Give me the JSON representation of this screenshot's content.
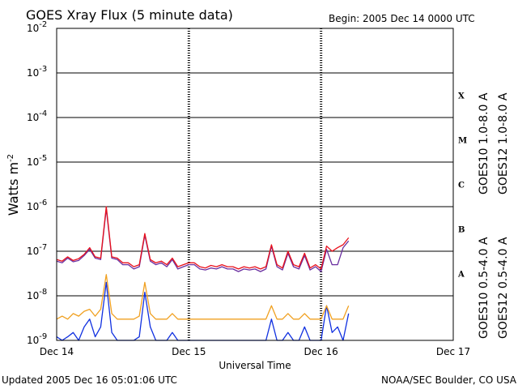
{
  "header": {
    "title": "GOES Xray Flux (5 minute data)",
    "begin": "Begin:  2005 Dec 14 0000 UTC"
  },
  "footer": {
    "updated": "Updated 2005 Dec 16 05:01:06 UTC",
    "credit": "NOAA/SEC Boulder, CO USA"
  },
  "chart_data": {
    "type": "line",
    "title": "GOES Xray Flux (5 minute data)",
    "xlabel": "Universal Time",
    "ylabel_base": "Watts m",
    "ylabel_exp": "-2",
    "yscale": "log",
    "ylim": [
      1e-09,
      0.01
    ],
    "xlim": [
      0,
      72
    ],
    "x_unit": "hours since 2005 Dec 14 0000 UTC",
    "x_ticks": [
      {
        "x": 0,
        "label": "Dec 14"
      },
      {
        "x": 24,
        "label": "Dec 15"
      },
      {
        "x": 48,
        "label": "Dec 16"
      },
      {
        "x": 72,
        "label": "Dec 17"
      }
    ],
    "y_ticks": [
      {
        "exp": "-9"
      },
      {
        "exp": "-8"
      },
      {
        "exp": "-7"
      },
      {
        "exp": "-6"
      },
      {
        "exp": "-5"
      },
      {
        "exp": "-4"
      },
      {
        "exp": "-3"
      },
      {
        "exp": "-2"
      }
    ],
    "y_tick_base": "10",
    "flare_classes": [
      {
        "label": "A",
        "level": 1e-08
      },
      {
        "label": "B",
        "level": 1e-07
      },
      {
        "label": "C",
        "level": 1e-06
      },
      {
        "label": "M",
        "level": 1e-05
      },
      {
        "label": "X",
        "level": 0.0001
      }
    ],
    "grid": true,
    "series": [
      {
        "name": "GOES10 1.0-8.0 A",
        "color": "#6a2fa0",
        "x": [
          0,
          1,
          2,
          3,
          4,
          5,
          6,
          7,
          8,
          9,
          10,
          11,
          12,
          13,
          14,
          15,
          16,
          17,
          18,
          19,
          20,
          21,
          22,
          23,
          24,
          25,
          26,
          27,
          28,
          29,
          30,
          31,
          32,
          33,
          34,
          35,
          36,
          37,
          38,
          39,
          40,
          41,
          42,
          43,
          44,
          45,
          46,
          47,
          48,
          49,
          50,
          51,
          52,
          53
        ],
        "y": [
          6e-08,
          5.5e-08,
          7e-08,
          5.8e-08,
          6.2e-08,
          8e-08,
          1.1e-07,
          7e-08,
          6.5e-08,
          9e-07,
          7e-08,
          6.5e-08,
          5e-08,
          5e-08,
          4e-08,
          4.5e-08,
          2.3e-07,
          6e-08,
          5e-08,
          5.5e-08,
          4.5e-08,
          6.5e-08,
          4e-08,
          4.5e-08,
          5e-08,
          5e-08,
          4e-08,
          3.8e-08,
          4.2e-08,
          4e-08,
          4.5e-08,
          4e-08,
          4e-08,
          3.5e-08,
          4e-08,
          3.8e-08,
          4e-08,
          3.5e-08,
          4e-08,
          1.3e-07,
          4.5e-08,
          3.8e-08,
          9e-08,
          4.5e-08,
          4e-08,
          8e-08,
          3.8e-08,
          4.5e-08,
          3.5e-08,
          1.1e-07,
          5e-08,
          5e-08,
          1.2e-07,
          1.7e-07
        ]
      },
      {
        "name": "GOES12 1.0-8.0 A",
        "color": "#e8101c",
        "x": [
          0,
          1,
          2,
          3,
          4,
          5,
          6,
          7,
          8,
          9,
          10,
          11,
          12,
          13,
          14,
          15,
          16,
          17,
          18,
          19,
          20,
          21,
          22,
          23,
          24,
          25,
          26,
          27,
          28,
          29,
          30,
          31,
          32,
          33,
          34,
          35,
          36,
          37,
          38,
          39,
          40,
          41,
          42,
          43,
          44,
          45,
          46,
          47,
          48,
          49,
          50,
          51,
          52,
          53
        ],
        "y": [
          6.5e-08,
          6e-08,
          7.5e-08,
          6.2e-08,
          6.8e-08,
          8.5e-08,
          1.2e-07,
          7.5e-08,
          7e-08,
          1e-06,
          7.5e-08,
          7e-08,
          5.5e-08,
          5.5e-08,
          4.5e-08,
          5e-08,
          2.5e-07,
          6.5e-08,
          5.5e-08,
          6e-08,
          5e-08,
          7e-08,
          4.5e-08,
          5e-08,
          5.5e-08,
          5.5e-08,
          4.5e-08,
          4.2e-08,
          4.8e-08,
          4.5e-08,
          5e-08,
          4.5e-08,
          4.5e-08,
          4e-08,
          4.5e-08,
          4.2e-08,
          4.5e-08,
          4e-08,
          4.5e-08,
          1.4e-07,
          5e-08,
          4.2e-08,
          1e-07,
          5e-08,
          4.5e-08,
          9e-08,
          4.2e-08,
          5e-08,
          4e-08,
          1.3e-07,
          1e-07,
          1.2e-07,
          1.4e-07,
          2e-07
        ]
      },
      {
        "name": "GOES10 0.5-4.0 A",
        "color": "#f0a020",
        "x": [
          0,
          1,
          2,
          3,
          4,
          5,
          6,
          7,
          8,
          9,
          10,
          11,
          12,
          13,
          14,
          15,
          16,
          17,
          18,
          19,
          20,
          21,
          22,
          23,
          24,
          25,
          26,
          27,
          28,
          29,
          30,
          31,
          32,
          33,
          34,
          35,
          36,
          37,
          38,
          39,
          40,
          41,
          42,
          43,
          44,
          45,
          46,
          47,
          48,
          49,
          50,
          51,
          52,
          53
        ],
        "y": [
          3e-09,
          3.5e-09,
          3e-09,
          4e-09,
          3.5e-09,
          4.5e-09,
          5e-09,
          3.5e-09,
          5e-09,
          3e-08,
          4e-09,
          3e-09,
          3e-09,
          3e-09,
          3e-09,
          3.5e-09,
          2e-08,
          4e-09,
          3e-09,
          3e-09,
          3e-09,
          4e-09,
          3e-09,
          3e-09,
          3e-09,
          3e-09,
          3e-09,
          3e-09,
          3e-09,
          3e-09,
          3e-09,
          3e-09,
          3e-09,
          3e-09,
          3e-09,
          3e-09,
          3e-09,
          3e-09,
          3e-09,
          6e-09,
          3e-09,
          3e-09,
          4e-09,
          3e-09,
          3e-09,
          4e-09,
          3e-09,
          3e-09,
          3e-09,
          6e-09,
          3e-09,
          3e-09,
          3e-09,
          6e-09
        ]
      },
      {
        "name": "GOES12 0.5-4.0 A",
        "color": "#1030e0",
        "x": [
          0,
          1,
          2,
          3,
          4,
          5,
          6,
          7,
          8,
          9,
          10,
          11,
          12,
          13,
          14,
          15,
          16,
          17,
          18,
          19,
          20,
          21,
          22,
          23,
          24,
          25,
          26,
          27,
          28,
          29,
          30,
          31,
          32,
          33,
          34,
          35,
          36,
          37,
          38,
          39,
          40,
          41,
          42,
          43,
          44,
          45,
          46,
          47,
          48,
          49,
          50,
          51,
          52,
          53
        ],
        "y": [
          1.2e-09,
          1e-09,
          1.2e-09,
          1.5e-09,
          1e-09,
          2e-09,
          3e-09,
          1.2e-09,
          2e-09,
          2e-08,
          1.5e-09,
          1e-09,
          1e-09,
          1e-09,
          1e-09,
          1.2e-09,
          1.2e-08,
          2e-09,
          1e-09,
          1e-09,
          1e-09,
          1.5e-09,
          1e-09,
          1e-09,
          1e-09,
          1e-09,
          1e-09,
          1e-09,
          1e-09,
          1e-09,
          1e-09,
          1e-09,
          1e-09,
          1e-09,
          1e-09,
          1e-09,
          1e-09,
          1e-09,
          1e-09,
          3e-09,
          1e-09,
          1e-09,
          1.5e-09,
          1e-09,
          1e-09,
          2e-09,
          1e-09,
          1e-09,
          1e-09,
          6e-09,
          1.5e-09,
          2e-09,
          1e-09,
          4e-09
        ]
      }
    ]
  }
}
